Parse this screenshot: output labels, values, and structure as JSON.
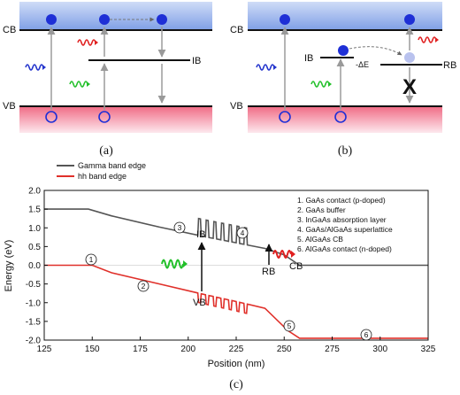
{
  "panel_a": {
    "cb_label": "CB",
    "vb_label": "VB",
    "ib_label": "IB",
    "caption": "(a)"
  },
  "panel_b": {
    "cb_label": "CB",
    "vb_label": "VB",
    "ib_label": "IB",
    "rb_label": "RB",
    "delta_e_label": "-ΔE",
    "blocked_mark": "X",
    "caption": "(b)"
  },
  "panel_c": {
    "caption": "(c)",
    "legend": {
      "gamma": "Gamma band edge",
      "hh": "hh band edge"
    },
    "labels": {
      "ib": "IB",
      "rb": "RB",
      "cb": "CB",
      "vb": "VB"
    },
    "region_markers": [
      "1",
      "2",
      "3",
      "4",
      "5",
      "6"
    ],
    "notes": [
      "1. GaAs contact (p-doped)",
      "2. GaAs buffer",
      "3. InGaAs absorption layer",
      "4. GaAs/AlGaAs superlattice",
      "5. AlGaAs CB",
      "6. AlGaAs contact (n-doped)"
    ],
    "colors": {
      "gamma": "#555555",
      "hh": "#e0302a",
      "photon_green": "#22c02a",
      "photon_red": "#e02020"
    }
  },
  "chart_data": {
    "type": "line",
    "xlabel": "Position (nm)",
    "ylabel": "Energy (eV)",
    "xlim": [
      125,
      325
    ],
    "ylim": [
      -2.0,
      2.0
    ],
    "xticks": [
      125,
      150,
      175,
      200,
      225,
      250,
      275,
      300,
      325
    ],
    "yticks": [
      2.0,
      1.5,
      1.0,
      0.5,
      0.0,
      -0.5,
      -1.0,
      -1.5,
      -2.0
    ],
    "series": [
      {
        "name": "Gamma band edge",
        "points": [
          [
            125,
            1.5
          ],
          [
            148,
            1.5
          ],
          [
            160,
            1.32
          ],
          [
            185,
            1.02
          ],
          [
            210,
            0.75
          ],
          [
            220,
            0.65
          ],
          [
            230,
            0.55
          ],
          [
            240,
            0.45
          ],
          [
            250,
            0.28
          ],
          [
            258,
            0.0
          ],
          [
            325,
            0.0
          ]
        ],
        "qw": {
          "x": [
            205,
            209,
            213,
            217,
            221,
            225,
            229
          ],
          "depth": 0.45
        }
      },
      {
        "name": "hh band edge",
        "points": [
          [
            125,
            0.0
          ],
          [
            150,
            0.0
          ],
          [
            160,
            -0.2
          ],
          [
            185,
            -0.5
          ],
          [
            210,
            -0.8
          ],
          [
            225,
            -0.97
          ],
          [
            240,
            -1.15
          ],
          [
            252,
            -1.75
          ],
          [
            258,
            -1.95
          ],
          [
            325,
            -1.95
          ]
        ],
        "qw": {
          "x": [
            205,
            209,
            213,
            217,
            221,
            225,
            229
          ],
          "depth": 0.25
        }
      }
    ]
  }
}
